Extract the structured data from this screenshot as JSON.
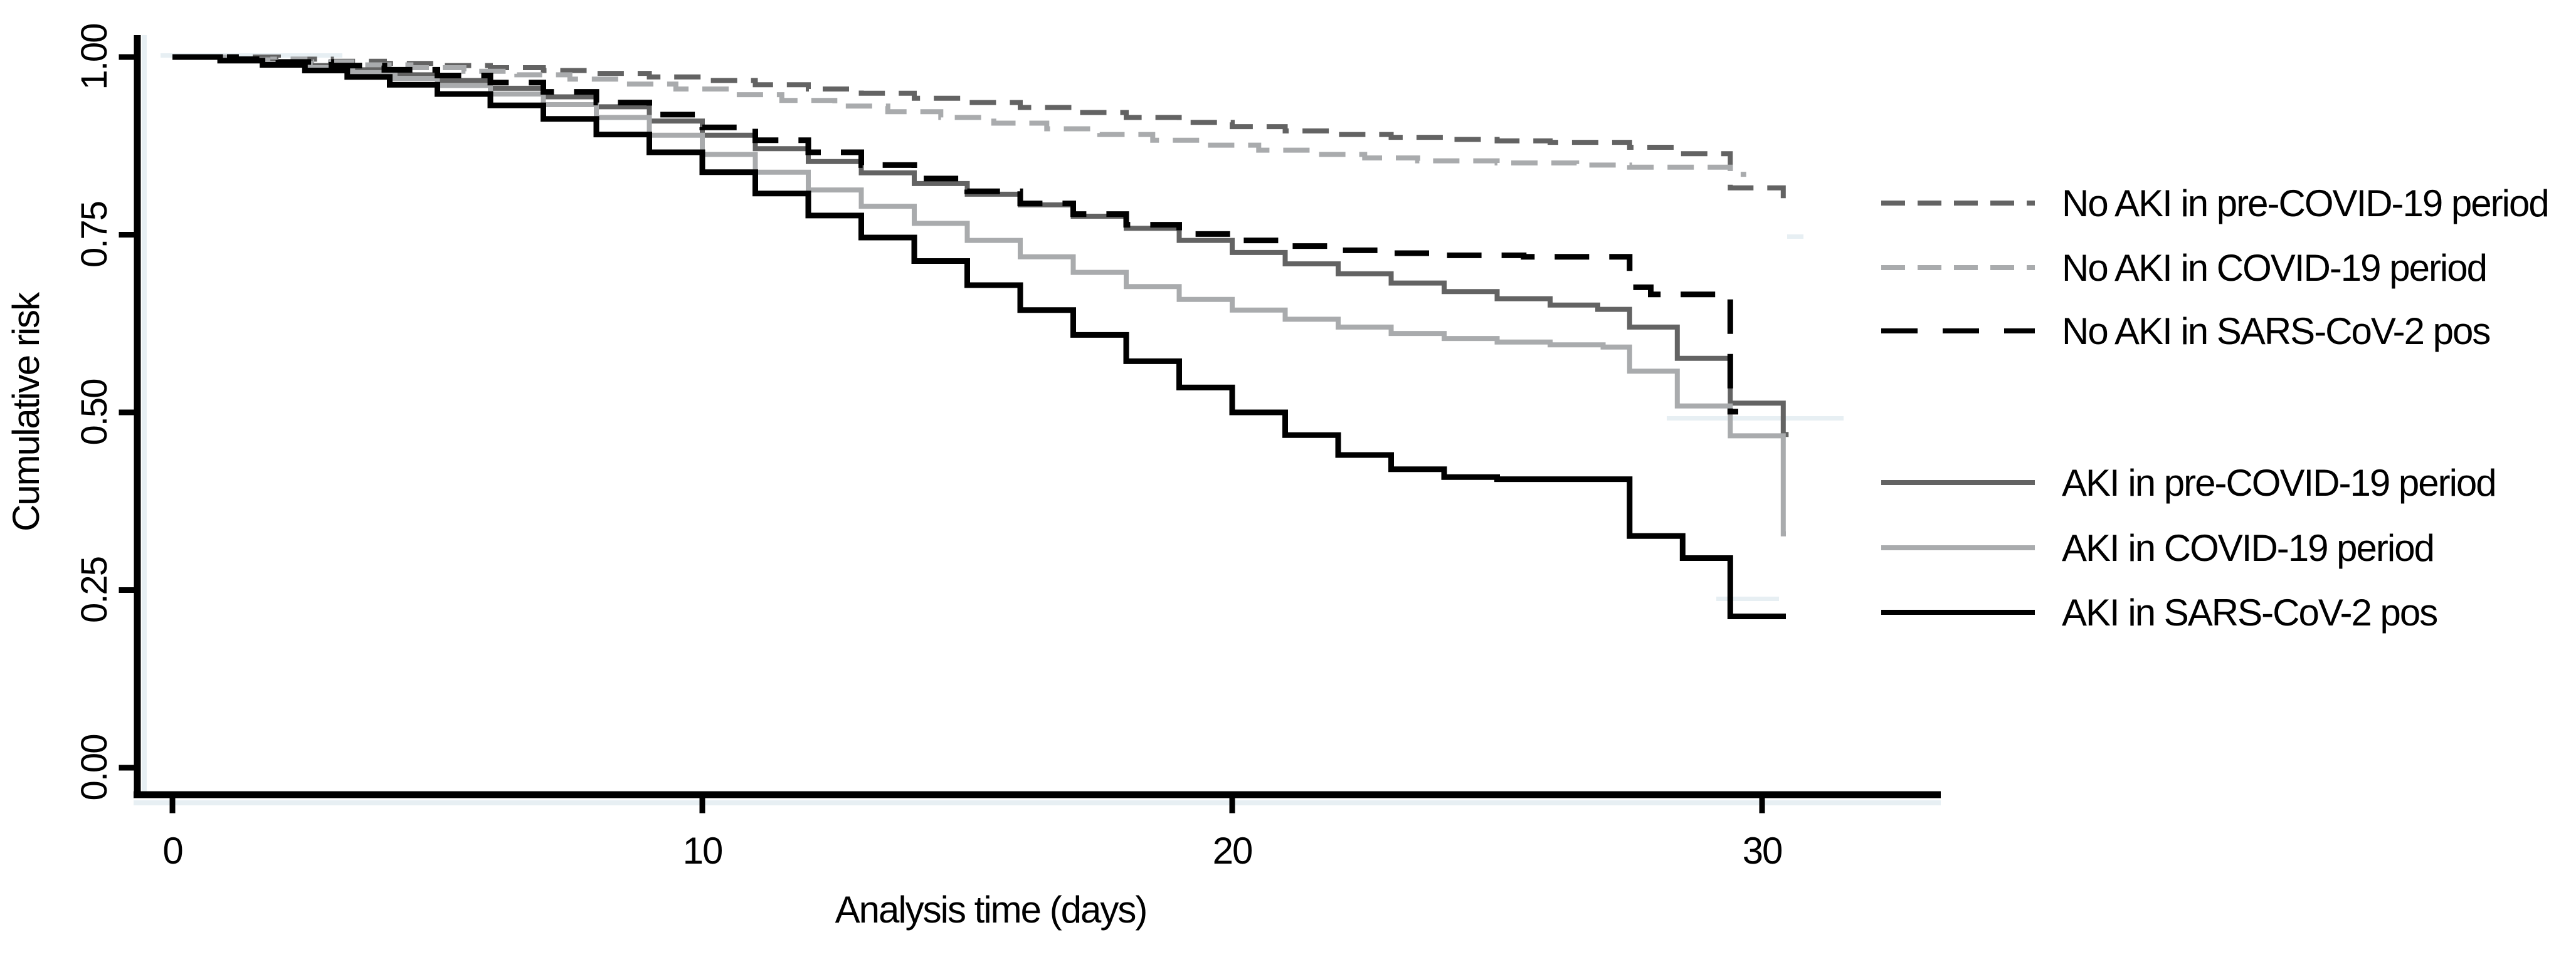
{
  "chart_data": {
    "type": "line",
    "subtype": "step-cumulative-incidence",
    "title": "",
    "xlabel": "Analysis time (days)",
    "ylabel": "Cumulative risk",
    "xlim": [
      0,
      33.4
    ],
    "ylim": [
      0,
      1
    ],
    "xticks": [
      0,
      10,
      20,
      30
    ],
    "xtick_labels": [
      "0",
      "10",
      "20",
      "30"
    ],
    "yticks": [
      0,
      0.25,
      0.5,
      0.75,
      1
    ],
    "ytick_labels": [
      "0.00",
      "0.25",
      "0.50",
      "0.75",
      "1.00"
    ],
    "grid": "off",
    "legend_position": "right",
    "colors": {
      "dark_gray": "#636363",
      "light_gray": "#a9abad",
      "black": "#000000",
      "axis": "#000000",
      "accent_blue": "#e7eff3"
    },
    "series": [
      {
        "name": "No AKI in pre-COVID-19 period",
        "style": "dashed",
        "color": "#636363",
        "end_day": 30.6,
        "points": [
          [
            0,
            1.0
          ],
          [
            2,
            0.997
          ],
          [
            3,
            0.994
          ],
          [
            4,
            0.991
          ],
          [
            5,
            0.988
          ],
          [
            6,
            0.985
          ],
          [
            7,
            0.981
          ],
          [
            8,
            0.977
          ],
          [
            9,
            0.972
          ],
          [
            10,
            0.967
          ],
          [
            11,
            0.961
          ],
          [
            12,
            0.955
          ],
          [
            13,
            0.949
          ],
          [
            14,
            0.942
          ],
          [
            15,
            0.936
          ],
          [
            16,
            0.929
          ],
          [
            17,
            0.922
          ],
          [
            18,
            0.915
          ],
          [
            19,
            0.908
          ],
          [
            20,
            0.902
          ],
          [
            21,
            0.896
          ],
          [
            22,
            0.891
          ],
          [
            23,
            0.887
          ],
          [
            24,
            0.884
          ],
          [
            25,
            0.882
          ],
          [
            26,
            0.88
          ],
          [
            27.5,
            0.873
          ],
          [
            28.4,
            0.864
          ],
          [
            29.4,
            0.816
          ],
          [
            30.4,
            0.798
          ]
        ]
      },
      {
        "name": "No AKI in COVID-19 period",
        "style": "dashed",
        "color": "#a9abad",
        "end_day": 29.7,
        "points": [
          [
            0,
            1.0
          ],
          [
            1.5,
            0.997
          ],
          [
            2.5,
            0.993
          ],
          [
            3.5,
            0.989
          ],
          [
            4.5,
            0.985
          ],
          [
            5.5,
            0.98
          ],
          [
            6.5,
            0.975
          ],
          [
            7.5,
            0.969
          ],
          [
            8.5,
            0.962
          ],
          [
            9.5,
            0.955
          ],
          [
            10.5,
            0.947
          ],
          [
            11.5,
            0.939
          ],
          [
            12.5,
            0.931
          ],
          [
            13.5,
            0.923
          ],
          [
            14.5,
            0.915
          ],
          [
            15.5,
            0.907
          ],
          [
            16.5,
            0.899
          ],
          [
            17.5,
            0.891
          ],
          [
            18.5,
            0.883
          ],
          [
            19.5,
            0.876
          ],
          [
            20.5,
            0.869
          ],
          [
            21.5,
            0.863
          ],
          [
            22.5,
            0.858
          ],
          [
            23.5,
            0.854
          ],
          [
            25,
            0.851
          ],
          [
            26.5,
            0.848
          ],
          [
            27.5,
            0.845
          ],
          [
            29.4,
            0.835
          ]
        ]
      },
      {
        "name": "No AKI in SARS-CoV-2 pos",
        "style": "dashed",
        "color": "#000000",
        "end_day": 29.55,
        "points": [
          [
            0,
            1.0
          ],
          [
            1.2,
            0.997
          ],
          [
            2,
            0.993
          ],
          [
            3,
            0.988
          ],
          [
            4,
            0.982
          ],
          [
            5,
            0.974
          ],
          [
            6,
            0.964
          ],
          [
            7,
            0.951
          ],
          [
            8,
            0.936
          ],
          [
            9,
            0.919
          ],
          [
            10,
            0.901
          ],
          [
            11,
            0.883
          ],
          [
            12,
            0.866
          ],
          [
            13,
            0.848
          ],
          [
            14,
            0.829
          ],
          [
            15,
            0.811
          ],
          [
            16,
            0.794
          ],
          [
            17,
            0.779
          ],
          [
            18,
            0.764
          ],
          [
            19,
            0.751
          ],
          [
            20,
            0.742
          ],
          [
            21,
            0.734
          ],
          [
            22,
            0.728
          ],
          [
            23,
            0.724
          ],
          [
            24,
            0.721
          ],
          [
            25.5,
            0.719
          ],
          [
            27.5,
            0.676
          ],
          [
            27.9,
            0.666
          ],
          [
            29.4,
            0.501
          ]
        ]
      },
      {
        "name": "AKI in pre-COVID-19 period",
        "style": "solid",
        "color": "#636363",
        "end_day": 30.5,
        "points": [
          [
            0,
            1.0
          ],
          [
            1,
            0.997
          ],
          [
            1.8,
            0.993
          ],
          [
            2.6,
            0.988
          ],
          [
            3.4,
            0.982
          ],
          [
            4.2,
            0.975
          ],
          [
            5,
            0.967
          ],
          [
            6,
            0.956
          ],
          [
            7,
            0.944
          ],
          [
            8,
            0.93
          ],
          [
            9,
            0.91
          ],
          [
            10,
            0.89
          ],
          [
            11,
            0.871
          ],
          [
            12,
            0.853
          ],
          [
            13,
            0.837
          ],
          [
            14,
            0.822
          ],
          [
            15,
            0.807
          ],
          [
            16,
            0.792
          ],
          [
            17,
            0.776
          ],
          [
            18,
            0.759
          ],
          [
            19,
            0.742
          ],
          [
            20,
            0.725
          ],
          [
            21,
            0.709
          ],
          [
            22,
            0.695
          ],
          [
            23,
            0.682
          ],
          [
            24,
            0.67
          ],
          [
            25,
            0.66
          ],
          [
            26,
            0.651
          ],
          [
            26.9,
            0.645
          ],
          [
            27.5,
            0.62
          ],
          [
            28.4,
            0.576
          ],
          [
            29.4,
            0.513
          ],
          [
            30.4,
            0.469
          ]
        ]
      },
      {
        "name": "AKI in COVID-19 period",
        "style": "solid",
        "color": "#a9abad",
        "end_day": 30.45,
        "points": [
          [
            0,
            1.0
          ],
          [
            1,
            0.996
          ],
          [
            1.8,
            0.991
          ],
          [
            2.6,
            0.985
          ],
          [
            3.4,
            0.978
          ],
          [
            4.2,
            0.97
          ],
          [
            5,
            0.96
          ],
          [
            6,
            0.948
          ],
          [
            7,
            0.933
          ],
          [
            8,
            0.915
          ],
          [
            9,
            0.89
          ],
          [
            10,
            0.863
          ],
          [
            11,
            0.838
          ],
          [
            12,
            0.813
          ],
          [
            13,
            0.79
          ],
          [
            14,
            0.766
          ],
          [
            15,
            0.742
          ],
          [
            16,
            0.719
          ],
          [
            17,
            0.697
          ],
          [
            18,
            0.677
          ],
          [
            19,
            0.659
          ],
          [
            20,
            0.644
          ],
          [
            21,
            0.631
          ],
          [
            22,
            0.62
          ],
          [
            23,
            0.611
          ],
          [
            24,
            0.604
          ],
          [
            25,
            0.599
          ],
          [
            26,
            0.595
          ],
          [
            27,
            0.592
          ],
          [
            27.5,
            0.558
          ],
          [
            28.4,
            0.509
          ],
          [
            29.4,
            0.467
          ],
          [
            30.4,
            0.329
          ]
        ]
      },
      {
        "name": "AKI in SARS-CoV-2 pos",
        "style": "solid",
        "color": "#000000",
        "end_day": 30.45,
        "points": [
          [
            0,
            1.0
          ],
          [
            0.9,
            0.995
          ],
          [
            1.7,
            0.989
          ],
          [
            2.5,
            0.981
          ],
          [
            3.3,
            0.972
          ],
          [
            4.1,
            0.961
          ],
          [
            5,
            0.948
          ],
          [
            6,
            0.932
          ],
          [
            7,
            0.913
          ],
          [
            8,
            0.891
          ],
          [
            9,
            0.866
          ],
          [
            10,
            0.838
          ],
          [
            11,
            0.808
          ],
          [
            12,
            0.777
          ],
          [
            13,
            0.746
          ],
          [
            14,
            0.713
          ],
          [
            15,
            0.679
          ],
          [
            16,
            0.644
          ],
          [
            17,
            0.609
          ],
          [
            18,
            0.572
          ],
          [
            19,
            0.535
          ],
          [
            20,
            0.5
          ],
          [
            21,
            0.468
          ],
          [
            22,
            0.44
          ],
          [
            23,
            0.42
          ],
          [
            24,
            0.409
          ],
          [
            25,
            0.406
          ],
          [
            27.5,
            0.326
          ],
          [
            28.5,
            0.295
          ],
          [
            29.4,
            0.213
          ]
        ]
      }
    ]
  }
}
